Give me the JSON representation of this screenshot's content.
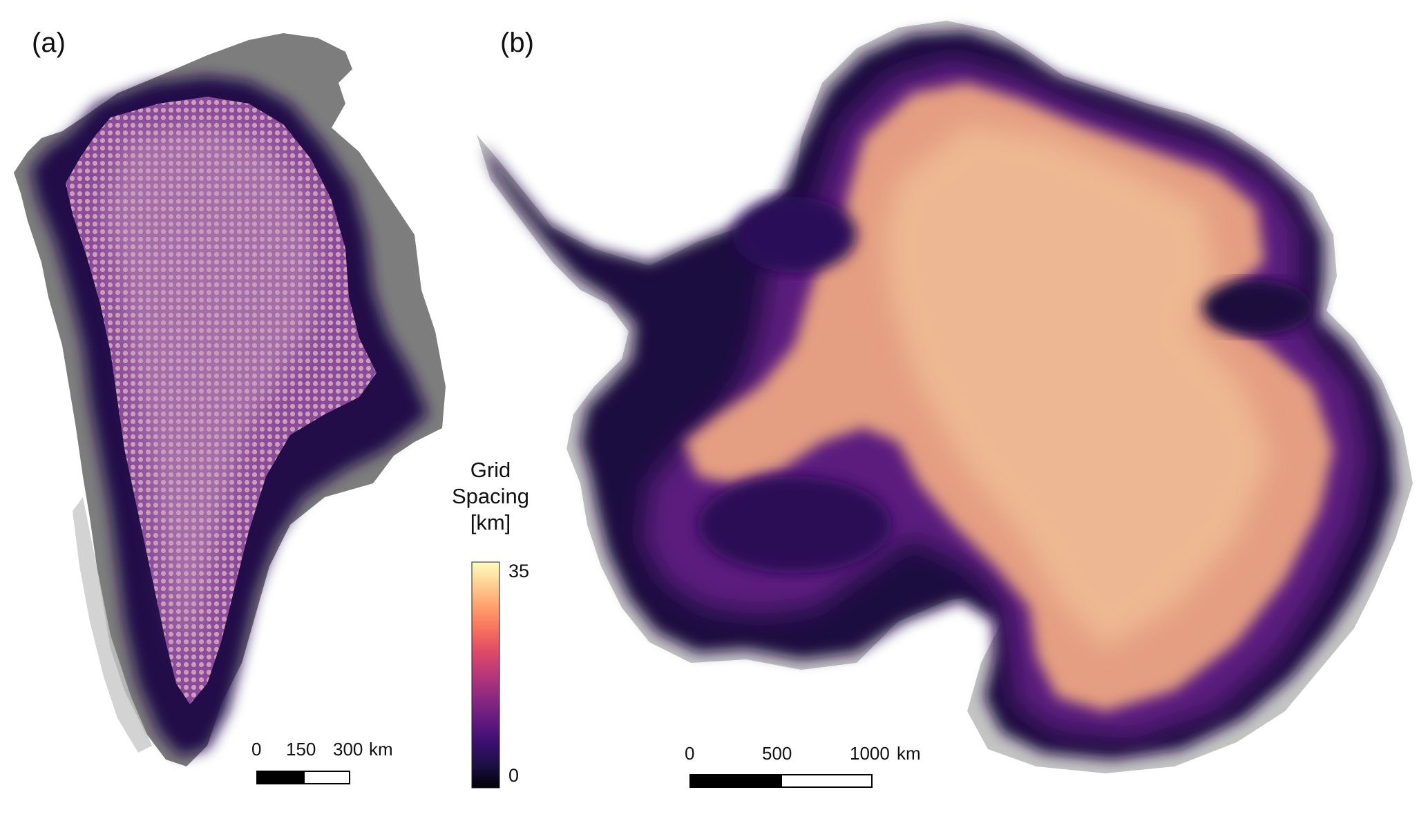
{
  "panels": {
    "a": {
      "label": "(a)"
    },
    "b": {
      "label": "(b)"
    }
  },
  "colorbar": {
    "title_line1": "Grid",
    "title_line2": "Spacing",
    "title_line3": "[km]",
    "min_label": "0",
    "max_label": "35",
    "min_value": 0,
    "max_value": 35,
    "colormap": [
      "#000004",
      "#1c1044",
      "#3b0f70",
      "#641a80",
      "#8c2981",
      "#b73779",
      "#de4968",
      "#f7705c",
      "#fe9f6d",
      "#fecf92",
      "#fcfdbf"
    ]
  },
  "scalebar_a": {
    "ticks": [
      "0",
      "150",
      "300"
    ],
    "unit": "km"
  },
  "scalebar_b": {
    "ticks": [
      "0",
      "500",
      "1000"
    ],
    "unit": "km"
  },
  "colors": {
    "land": "#7d7d7d",
    "land_light": "#c6c6c6",
    "ice_shelf": "#bfbfbf",
    "coast_dark": "#1d0c3c",
    "coast_mid": "#3d1370",
    "interior_a": "#7a3d8c",
    "interior_b": "#e8a27a"
  }
}
